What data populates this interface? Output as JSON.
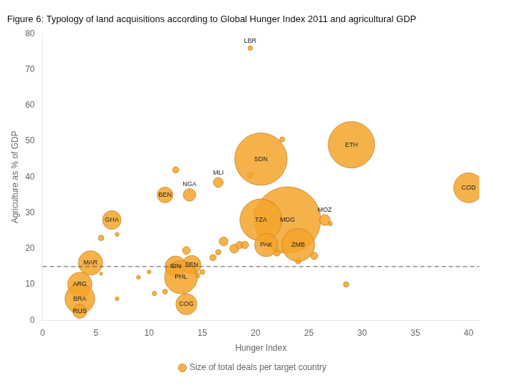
{
  "chart_data": {
    "type": "bubble",
    "title": "Figure 6: Typology of land acquisitions according to Global Hunger Index 2011 and agricultural GDP",
    "x_label": "Hunger Index",
    "y_label": "Agriculture as % of GDP",
    "xlim": [
      0,
      41
    ],
    "ylim": [
      0,
      80
    ],
    "xticks": [
      0,
      5,
      10,
      15,
      20,
      25,
      30,
      35,
      40
    ],
    "yticks": [
      0,
      10,
      20,
      30,
      40,
      50,
      60,
      70,
      80
    ],
    "grid": false,
    "legend": "bottom",
    "hlines": [
      {
        "y": 15,
        "line_style": "dashed"
      }
    ],
    "series": [
      {
        "name": "Size of total deals per target country",
        "color": "#F5A42A",
        "x": [
          5.5,
          7,
          5.5,
          7,
          9,
          10,
          10.5,
          11.5,
          12.5,
          13.5,
          14.5,
          15,
          16,
          16.5,
          17,
          18,
          18.5,
          19,
          19.5,
          20,
          21.5,
          22,
          22.5,
          24,
          25.5,
          27,
          28.5,
          19.5,
          29,
          20.5,
          40,
          16.5,
          11.5,
          13.8,
          23,
          26.5,
          20.5,
          6.5,
          21,
          24,
          4.5,
          12.5,
          14,
          13,
          3.5,
          3.5,
          3.5,
          13.5
        ],
        "y": [
          23,
          24,
          13,
          6,
          12,
          13.5,
          7.5,
          8,
          42,
          19.5,
          12.5,
          13.5,
          17.5,
          19,
          22,
          20,
          21,
          21,
          40.5,
          30.5,
          32.5,
          19,
          50.5,
          16.5,
          18,
          27,
          10,
          76,
          49,
          45,
          37,
          38.5,
          35,
          35,
          28,
          28,
          28,
          28,
          21,
          21,
          16,
          15,
          15.5,
          12,
          10,
          6,
          2.5,
          4.5
        ],
        "sizes": [
          30,
          15,
          10,
          15,
          15,
          15,
          20,
          25,
          40,
          60,
          30,
          25,
          40,
          30,
          80,
          80,
          55,
          55,
          40,
          30,
          25,
          60,
          25,
          30,
          55,
          20,
          30,
          20,
          2200,
          2800,
          900,
          100,
          250,
          160,
          4500,
          120,
          1800,
          350,
          550,
          1100,
          600,
          450,
          350,
          1100,
          600,
          900,
          200,
          450
        ],
        "labels": [
          null,
          null,
          null,
          null,
          null,
          null,
          null,
          null,
          null,
          null,
          null,
          null,
          null,
          null,
          null,
          null,
          null,
          null,
          null,
          null,
          null,
          null,
          null,
          null,
          null,
          null,
          null,
          "LBR",
          "ETH",
          "SDN",
          "COD",
          "MLI",
          "BEN",
          "NGA",
          "MDG",
          "MOZ",
          "TZA",
          "GHA",
          "PAK",
          "ZMB",
          "MAR",
          "IDN",
          "SEN",
          "PHL",
          "ARG",
          "BRA",
          "RUS",
          "COG"
        ]
      }
    ]
  }
}
